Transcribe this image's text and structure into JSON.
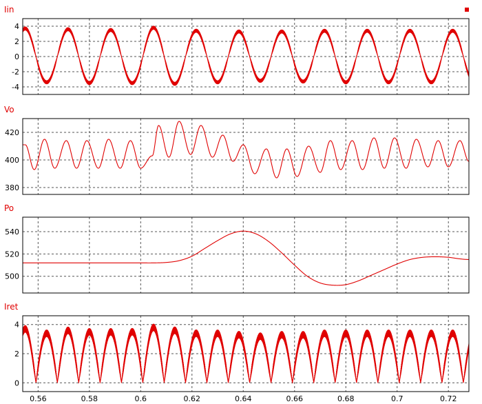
{
  "colors": {
    "trace": "#e00000",
    "grid": "#555555",
    "frame": "#000000",
    "background": "#ffffff"
  },
  "legend_marker": {
    "icon": "square-marker",
    "color": "#e00000"
  },
  "chart_data": [
    {
      "type": "line",
      "title": "Iin",
      "xlim": [
        0.554,
        0.728
      ],
      "ylim": [
        -5,
        5
      ],
      "yticks": [
        -4,
        -2,
        0,
        2,
        4
      ],
      "grid": true,
      "series": [
        {
          "signal": "sinusoid with high-frequency switching ripple",
          "amplitude": 3.4,
          "frequency_hz": 60,
          "ripple_peak_to_peak": 0.5,
          "peaks": [
            {
              "x": 0.555,
              "y": 3.7
            },
            {
              "x": 0.563,
              "y": -3.4
            },
            {
              "x": 0.5715,
              "y": 3.6
            },
            {
              "x": 0.58,
              "y": -3.5
            },
            {
              "x": 0.588,
              "y": 3.5
            },
            {
              "x": 0.5965,
              "y": -3.5
            },
            {
              "x": 0.605,
              "y": 3.8
            },
            {
              "x": 0.6135,
              "y": -3.6
            },
            {
              "x": 0.622,
              "y": 3.4
            },
            {
              "x": 0.63,
              "y": -3.4
            },
            {
              "x": 0.6385,
              "y": 3.3
            },
            {
              "x": 0.647,
              "y": -3.2
            },
            {
              "x": 0.655,
              "y": 3.3
            },
            {
              "x": 0.6635,
              "y": -3.3
            },
            {
              "x": 0.672,
              "y": 3.4
            },
            {
              "x": 0.68,
              "y": -3.4
            },
            {
              "x": 0.6885,
              "y": 3.4
            },
            {
              "x": 0.697,
              "y": -3.4
            },
            {
              "x": 0.705,
              "y": 3.4
            },
            {
              "x": 0.7135,
              "y": -3.4
            },
            {
              "x": 0.722,
              "y": 3.4
            }
          ]
        }
      ]
    },
    {
      "type": "line",
      "title": "Vo",
      "xlim": [
        0.554,
        0.728
      ],
      "ylim": [
        375,
        430
      ],
      "yticks": [
        380,
        400,
        420
      ],
      "grid": true,
      "series": [
        {
          "signal": "dc level with 120 Hz ripple",
          "ripple_frequency_hz": 120,
          "extrema": [
            {
              "x": 0.555,
              "y": 411
            },
            {
              "x": 0.5585,
              "y": 393
            },
            {
              "x": 0.5625,
              "y": 415
            },
            {
              "x": 0.5665,
              "y": 394
            },
            {
              "x": 0.571,
              "y": 414
            },
            {
              "x": 0.575,
              "y": 394
            },
            {
              "x": 0.579,
              "y": 414
            },
            {
              "x": 0.5835,
              "y": 394
            },
            {
              "x": 0.5875,
              "y": 415
            },
            {
              "x": 0.592,
              "y": 394
            },
            {
              "x": 0.596,
              "y": 414
            },
            {
              "x": 0.6,
              "y": 394
            },
            {
              "x": 0.6045,
              "y": 403
            },
            {
              "x": 0.607,
              "y": 425
            },
            {
              "x": 0.611,
              "y": 402
            },
            {
              "x": 0.615,
              "y": 428
            },
            {
              "x": 0.6195,
              "y": 404
            },
            {
              "x": 0.6235,
              "y": 425
            },
            {
              "x": 0.628,
              "y": 402
            },
            {
              "x": 0.632,
              "y": 418
            },
            {
              "x": 0.636,
              "y": 399
            },
            {
              "x": 0.64,
              "y": 411
            },
            {
              "x": 0.6445,
              "y": 390
            },
            {
              "x": 0.649,
              "y": 408
            },
            {
              "x": 0.653,
              "y": 387
            },
            {
              "x": 0.657,
              "y": 408
            },
            {
              "x": 0.661,
              "y": 388
            },
            {
              "x": 0.6655,
              "y": 410
            },
            {
              "x": 0.67,
              "y": 391
            },
            {
              "x": 0.674,
              "y": 414
            },
            {
              "x": 0.678,
              "y": 393
            },
            {
              "x": 0.6825,
              "y": 414
            },
            {
              "x": 0.6865,
              "y": 393
            },
            {
              "x": 0.691,
              "y": 416
            },
            {
              "x": 0.695,
              "y": 394
            },
            {
              "x": 0.699,
              "y": 416
            },
            {
              "x": 0.7035,
              "y": 394
            },
            {
              "x": 0.7075,
              "y": 415
            },
            {
              "x": 0.712,
              "y": 395
            },
            {
              "x": 0.716,
              "y": 414
            },
            {
              "x": 0.72,
              "y": 395
            },
            {
              "x": 0.7245,
              "y": 414
            },
            {
              "x": 0.728,
              "y": 399
            }
          ]
        }
      ]
    },
    {
      "type": "line",
      "title": "Po",
      "xlim": [
        0.554,
        0.728
      ],
      "ylim": [
        485,
        553
      ],
      "yticks": [
        500,
        520,
        540
      ],
      "grid": true,
      "series": [
        {
          "points": [
            {
              "x": 0.554,
              "y": 512
            },
            {
              "x": 0.56,
              "y": 512
            },
            {
              "x": 0.57,
              "y": 512
            },
            {
              "x": 0.58,
              "y": 512
            },
            {
              "x": 0.59,
              "y": 512
            },
            {
              "x": 0.6,
              "y": 512
            },
            {
              "x": 0.605,
              "y": 512
            },
            {
              "x": 0.61,
              "y": 512.4
            },
            {
              "x": 0.615,
              "y": 514
            },
            {
              "x": 0.62,
              "y": 518
            },
            {
              "x": 0.625,
              "y": 525
            },
            {
              "x": 0.63,
              "y": 532
            },
            {
              "x": 0.635,
              "y": 538
            },
            {
              "x": 0.64,
              "y": 540.5
            },
            {
              "x": 0.645,
              "y": 538
            },
            {
              "x": 0.65,
              "y": 531
            },
            {
              "x": 0.655,
              "y": 521
            },
            {
              "x": 0.66,
              "y": 510
            },
            {
              "x": 0.665,
              "y": 500
            },
            {
              "x": 0.67,
              "y": 494
            },
            {
              "x": 0.675,
              "y": 492
            },
            {
              "x": 0.68,
              "y": 492.5
            },
            {
              "x": 0.685,
              "y": 496
            },
            {
              "x": 0.69,
              "y": 501
            },
            {
              "x": 0.695,
              "y": 506
            },
            {
              "x": 0.7,
              "y": 511
            },
            {
              "x": 0.705,
              "y": 515
            },
            {
              "x": 0.71,
              "y": 517
            },
            {
              "x": 0.715,
              "y": 517.5
            },
            {
              "x": 0.72,
              "y": 517
            },
            {
              "x": 0.725,
              "y": 515.5
            },
            {
              "x": 0.728,
              "y": 515
            }
          ]
        }
      ]
    },
    {
      "type": "line",
      "title": "Iret",
      "xlim": [
        0.554,
        0.728
      ],
      "xticks": [
        0.56,
        0.58,
        0.6,
        0.62,
        0.64,
        0.66,
        0.68,
        0.7,
        0.72
      ],
      "xticklabels": [
        "0.56",
        "0.58",
        "0.6",
        "0.62",
        "0.64",
        "0.66",
        "0.68",
        "0.7",
        "0.72"
      ],
      "ylim": [
        -0.6,
        4.6
      ],
      "yticks": [
        0,
        2,
        4
      ],
      "grid": true,
      "series": [
        {
          "signal": "rectified sinusoid with high-frequency switching ripple",
          "ripple_peak_to_peak": 0.5,
          "peaks": [
            {
              "x": 0.555,
              "y": 3.7
            },
            {
              "x": 0.563,
              "y": 3.4
            },
            {
              "x": 0.5715,
              "y": 3.6
            },
            {
              "x": 0.58,
              "y": 3.5
            },
            {
              "x": 0.588,
              "y": 3.5
            },
            {
              "x": 0.5965,
              "y": 3.5
            },
            {
              "x": 0.605,
              "y": 3.8
            },
            {
              "x": 0.6135,
              "y": 3.6
            },
            {
              "x": 0.622,
              "y": 3.4
            },
            {
              "x": 0.63,
              "y": 3.4
            },
            {
              "x": 0.6385,
              "y": 3.3
            },
            {
              "x": 0.647,
              "y": 3.2
            },
            {
              "x": 0.655,
              "y": 3.3
            },
            {
              "x": 0.6635,
              "y": 3.3
            },
            {
              "x": 0.672,
              "y": 3.4
            },
            {
              "x": 0.68,
              "y": 3.4
            },
            {
              "x": 0.6885,
              "y": 3.4
            },
            {
              "x": 0.697,
              "y": 3.4
            },
            {
              "x": 0.705,
              "y": 3.4
            },
            {
              "x": 0.7135,
              "y": 3.4
            },
            {
              "x": 0.722,
              "y": 3.4
            }
          ]
        }
      ]
    }
  ]
}
